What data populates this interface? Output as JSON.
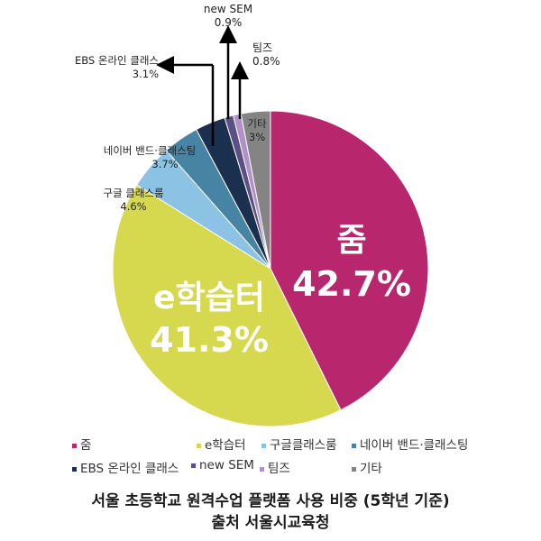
{
  "chart_data": {
    "type": "pie",
    "title": "서울 초등학교 원격수업 플랫폼 사용 비중 (5학년 기준)",
    "source": "출처 서울시교육청",
    "slices": [
      {
        "label": "줌",
        "value": 42.7,
        "display": "42.7%",
        "color": "#b8266e"
      },
      {
        "label": "e학습터",
        "value": 41.3,
        "display": "41.3%",
        "color": "#d6d84e"
      },
      {
        "label": "구글 클래스룸",
        "value": 4.6,
        "display": "4.6%",
        "color": "#8cc2e3"
      },
      {
        "label": "네이버 밴드·클래스팅",
        "value": 3.7,
        "display": "3.7%",
        "color": "#4784a3"
      },
      {
        "label": "EBS 온라인 클래스",
        "value": 3.1,
        "display": "3.1%",
        "color": "#1b2f4f"
      },
      {
        "label": "new SEM",
        "value": 0.9,
        "display": "0.9%",
        "color": "#5b4f86"
      },
      {
        "label": "팀즈",
        "value": 0.8,
        "display": "0.8%",
        "color": "#b092c9"
      },
      {
        "label": "기타",
        "value": 3.0,
        "display": "3%",
        "color": "#848484"
      }
    ]
  },
  "legend": [
    {
      "label": "줌",
      "color": "#b8266e"
    },
    {
      "label": "e학습터",
      "color": "#d6d84e"
    },
    {
      "label": "구글클래스룸",
      "color": "#8cc2e3"
    },
    {
      "label": "네이버 밴드·클래스팅",
      "color": "#4784a3"
    },
    {
      "label": "EBS 온라인 클래스",
      "color": "#1b2f4f"
    },
    {
      "label": "new SEM",
      "color": "#5b4f86"
    },
    {
      "label": "팀즈",
      "color": "#b092c9"
    },
    {
      "label": "기타",
      "color": "#848484"
    }
  ],
  "caption": {
    "line1": "서울 초등학교 원격수업 플랫폼 사용 비중 (5학년 기준)",
    "line2": "출처 서울시교육청"
  }
}
